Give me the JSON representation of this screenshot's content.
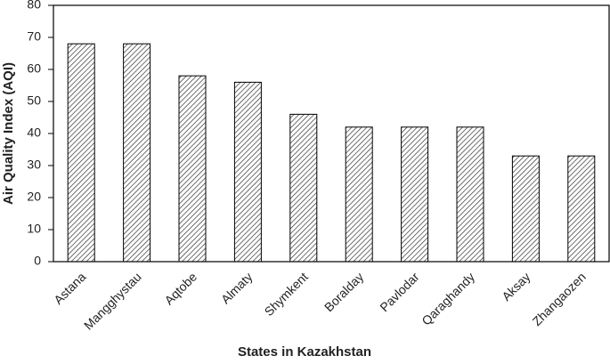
{
  "chart_data": {
    "type": "bar",
    "x_label": "States in Kazakhstan",
    "y_label": "Air Quality Index (AQI)",
    "categories": [
      "Astana",
      "Mangghystau",
      "Aqtobe",
      "Almaty",
      "Shymkent",
      "Boralday",
      "Pavlodar",
      "Qaraghandy",
      "Aksay",
      "Zhangaozen"
    ],
    "values": [
      68,
      68,
      58,
      56,
      46,
      42,
      42,
      42,
      33,
      33
    ],
    "color": "#333333",
    "ylim": [
      0,
      80
    ],
    "yticks": [
      0,
      10,
      20,
      30,
      40,
      50,
      60,
      70,
      80
    ]
  }
}
